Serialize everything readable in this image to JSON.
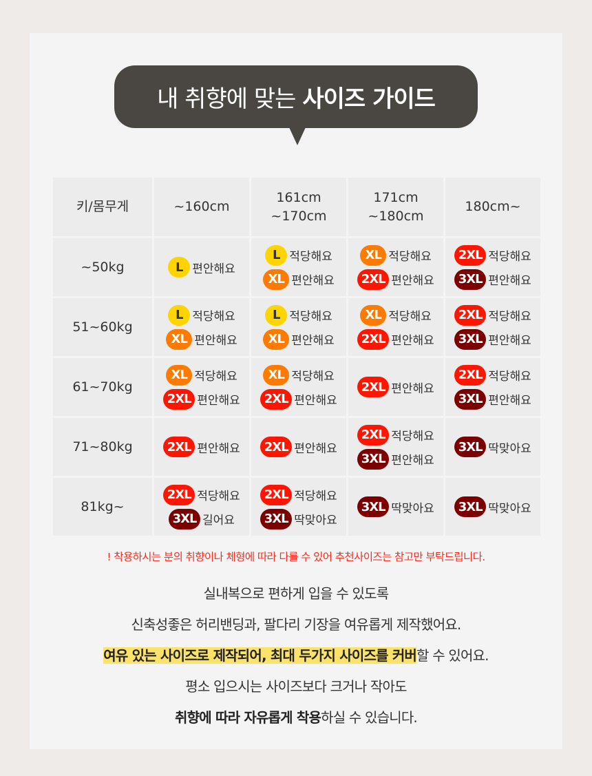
{
  "title": {
    "normal": "내 취향에 맞는",
    "bold": "사이즈 가이드"
  },
  "colors": {
    "L": "#ffd400",
    "XL": "#ff7a00",
    "2XL": "#ff1500",
    "3XL": "#7d0000",
    "bubble": "#4a4642",
    "note": "#ff2a1a",
    "highlight": "#fbe26a"
  },
  "table": {
    "corner": "키/몸무게",
    "heights": [
      [
        "~160cm"
      ],
      [
        "161cm",
        "~170cm"
      ],
      [
        "171cm",
        "~180cm"
      ],
      [
        "180cm~"
      ]
    ],
    "rows": [
      {
        "weight": "~50kg",
        "cells": [
          [
            [
              "L",
              "편안해요"
            ]
          ],
          [
            [
              "L",
              "적당해요"
            ],
            [
              "XL",
              "편안해요"
            ]
          ],
          [
            [
              "XL",
              "적당해요"
            ],
            [
              "2XL",
              "편안해요"
            ]
          ],
          [
            [
              "2XL",
              "적당해요"
            ],
            [
              "3XL",
              "편안해요"
            ]
          ]
        ]
      },
      {
        "weight": "51~60kg",
        "cells": [
          [
            [
              "L",
              "적당해요"
            ],
            [
              "XL",
              "편안해요"
            ]
          ],
          [
            [
              "L",
              "적당해요"
            ],
            [
              "XL",
              "편안해요"
            ]
          ],
          [
            [
              "XL",
              "적당해요"
            ],
            [
              "2XL",
              "편안해요"
            ]
          ],
          [
            [
              "2XL",
              "적당해요"
            ],
            [
              "3XL",
              "편안해요"
            ]
          ]
        ]
      },
      {
        "weight": "61~70kg",
        "cells": [
          [
            [
              "XL",
              "적당해요"
            ],
            [
              "2XL",
              "편안해요"
            ]
          ],
          [
            [
              "XL",
              "적당해요"
            ],
            [
              "2XL",
              "편안해요"
            ]
          ],
          [
            [
              "2XL",
              "편안해요"
            ]
          ],
          [
            [
              "2XL",
              "적당해요"
            ],
            [
              "3XL",
              "편안해요"
            ]
          ]
        ]
      },
      {
        "weight": "71~80kg",
        "cells": [
          [
            [
              "2XL",
              "편안해요"
            ]
          ],
          [
            [
              "2XL",
              "편안해요"
            ]
          ],
          [
            [
              "2XL",
              "적당해요"
            ],
            [
              "3XL",
              "편안해요"
            ]
          ],
          [
            [
              "3XL",
              "딱맞아요"
            ]
          ]
        ]
      },
      {
        "weight": "81kg~",
        "cells": [
          [
            [
              "2XL",
              "적당해요"
            ],
            [
              "3XL",
              "길어요"
            ]
          ],
          [
            [
              "2XL",
              "적당해요"
            ],
            [
              "3XL",
              "딱맞아요"
            ]
          ],
          [
            [
              "3XL",
              "딱맞아요"
            ]
          ],
          [
            [
              "3XL",
              "딱맞아요"
            ]
          ]
        ]
      }
    ]
  },
  "note": "! 착용하시는 분의 취향이나 체형에 따라 다를 수 있어 추천사이즈는 참고만 부탁드립니다.",
  "description": [
    [
      {
        "text": "실내복으로 편하게 입을 수 있도록"
      }
    ],
    [
      {
        "text": "신축성좋은 허리밴딩과, 팔다리 기장을 여유롭게 제작했어요."
      }
    ],
    [
      {
        "text": " 여유 있는 사이즈로 제작되어, 최대 두가지 사이즈를 커버",
        "bold": true,
        "highlight": true
      },
      {
        "text": "할 수 있어요."
      }
    ],
    [
      {
        "text": "평소 입으시는 사이즈보다 크거나 작아도"
      }
    ],
    [
      {
        "text": "취향에 따라 자유롭게 착용",
        "bold": true
      },
      {
        "text": "하실 수 있습니다."
      }
    ]
  ]
}
